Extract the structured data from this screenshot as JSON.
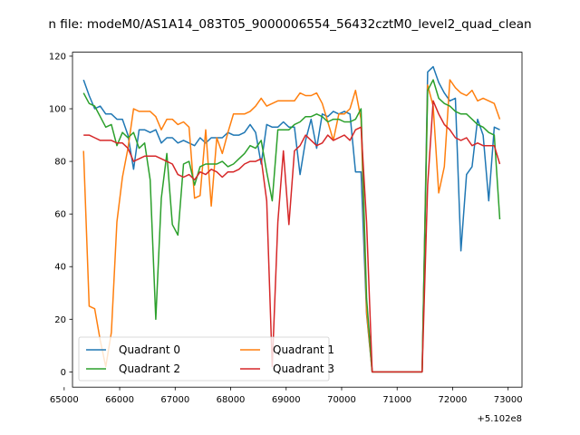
{
  "chart_data": {
    "type": "line",
    "title": "n file: modeM0/AS1A14_083T05_9000006554_56432cztM0_level2_quad_clean",
    "xlabel": "",
    "ylabel": "",
    "x_offset_label": "+5.102e8",
    "xlim": [
      65150,
      73250
    ],
    "ylim": [
      -5.8,
      121.5
    ],
    "x_ticks": [
      65000,
      66000,
      67000,
      68000,
      69000,
      70000,
      71000,
      72000,
      73000
    ],
    "y_ticks": [
      0,
      20,
      40,
      60,
      80,
      100,
      120
    ],
    "grid": false,
    "legend": {
      "placement": "lower-left",
      "columns": 2
    },
    "series": [
      {
        "name": "Quadrant 0",
        "color": "#1f77b4",
        "x": [
          65350,
          65450,
          65550,
          65650,
          65750,
          65850,
          65950,
          66050,
          66150,
          66250,
          66350,
          66450,
          66550,
          66650,
          66750,
          66850,
          66950,
          67050,
          67150,
          67250,
          67350,
          67450,
          67550,
          67650,
          67750,
          67850,
          67950,
          68050,
          68150,
          68250,
          68350,
          68450,
          68550,
          68650,
          68750,
          68850,
          68950,
          69050,
          69150,
          69250,
          69350,
          69450,
          69550,
          69650,
          69750,
          69850,
          69950,
          70050,
          70150,
          70250,
          70350,
          70450,
          70550,
          70650,
          71450,
          71550,
          71650,
          71750,
          71850,
          71950,
          72050,
          72150,
          72250,
          72350,
          72450,
          72550,
          72650,
          72750,
          72850
        ],
        "y": [
          111,
          105,
          100,
          101,
          98,
          98,
          96,
          96,
          90,
          77,
          92,
          92,
          91,
          92,
          87,
          89,
          89,
          87,
          88,
          87,
          86,
          89,
          87,
          89,
          89,
          89,
          91,
          90,
          90,
          91,
          94,
          91,
          79,
          94,
          93,
          93,
          95,
          93,
          93,
          75,
          88,
          96,
          85,
          98,
          97,
          99,
          98,
          99,
          98,
          76,
          76,
          22,
          0,
          0,
          0,
          114,
          116,
          110,
          106,
          103,
          104,
          46,
          75,
          78,
          96,
          90,
          65,
          93,
          92
        ]
      },
      {
        "name": "Quadrant 1",
        "color": "#ff7f0e",
        "x": [
          65350,
          65450,
          65550,
          65650,
          65750,
          65850,
          65950,
          66050,
          66150,
          66250,
          66350,
          66450,
          66550,
          66650,
          66750,
          66850,
          66950,
          67050,
          67150,
          67250,
          67350,
          67450,
          67550,
          67650,
          67750,
          67850,
          67950,
          68050,
          68150,
          68250,
          68350,
          68450,
          68550,
          68650,
          68750,
          68850,
          68950,
          69050,
          69150,
          69250,
          69350,
          69450,
          69550,
          69650,
          69750,
          69850,
          69950,
          70050,
          70150,
          70250,
          70350,
          70450,
          70550,
          70650,
          71450,
          71550,
          71650,
          71750,
          71850,
          71950,
          72050,
          72150,
          72250,
          72350,
          72450,
          72550,
          72650,
          72750,
          72850
        ],
        "y": [
          84,
          25,
          24,
          12,
          2,
          15,
          57,
          74,
          85,
          100,
          99,
          99,
          99,
          97,
          92,
          96,
          96,
          94,
          95,
          93,
          66,
          67,
          92,
          63,
          89,
          83,
          91,
          98,
          98,
          98,
          99,
          101,
          104,
          101,
          102,
          103,
          103,
          103,
          103,
          106,
          105,
          105,
          106,
          102,
          95,
          88,
          98,
          98,
          100,
          107,
          96,
          23,
          0,
          0,
          0,
          109,
          101,
          68,
          78,
          111,
          108,
          106,
          105,
          107,
          103,
          104,
          103,
          102,
          96
        ]
      },
      {
        "name": "Quadrant 2",
        "color": "#2ca02c",
        "x": [
          65350,
          65450,
          65550,
          65650,
          65750,
          65850,
          65950,
          66050,
          66150,
          66250,
          66350,
          66450,
          66550,
          66650,
          66750,
          66850,
          66950,
          67050,
          67150,
          67250,
          67350,
          67450,
          67550,
          67650,
          67750,
          67850,
          67950,
          68050,
          68150,
          68250,
          68350,
          68450,
          68550,
          68650,
          68750,
          68850,
          68950,
          69050,
          69150,
          69250,
          69350,
          69450,
          69550,
          69650,
          69750,
          69850,
          69950,
          70050,
          70150,
          70250,
          70350,
          70450,
          70550,
          70650,
          71450,
          71550,
          71650,
          71750,
          71850,
          71950,
          72050,
          72150,
          72250,
          72350,
          72450,
          72550,
          72650,
          72750,
          72850
        ],
        "y": [
          106,
          102,
          101,
          97,
          93,
          94,
          86,
          91,
          89,
          91,
          85,
          87,
          73,
          20,
          66,
          83,
          56,
          52,
          79,
          80,
          71,
          78,
          79,
          79,
          79,
          80,
          78,
          79,
          81,
          83,
          86,
          85,
          88,
          76,
          65,
          92,
          92,
          92,
          94,
          95,
          97,
          97,
          98,
          97,
          95,
          96,
          96,
          95,
          95,
          96,
          100,
          28,
          0,
          0,
          0,
          107,
          111,
          104,
          102,
          101,
          99,
          98,
          98,
          96,
          94,
          93,
          91,
          90,
          58
        ]
      },
      {
        "name": "Quadrant 3",
        "color": "#d62728",
        "x": [
          65350,
          65450,
          65550,
          65650,
          65750,
          65850,
          65950,
          66050,
          66150,
          66250,
          66350,
          66450,
          66550,
          66650,
          66750,
          66850,
          66950,
          67050,
          67150,
          67250,
          67350,
          67450,
          67550,
          67650,
          67750,
          67850,
          67950,
          68050,
          68150,
          68250,
          68350,
          68450,
          68550,
          68650,
          68750,
          68850,
          68950,
          69050,
          69150,
          69250,
          69350,
          69450,
          69550,
          69650,
          69750,
          69850,
          69950,
          70050,
          70150,
          70250,
          70350,
          70450,
          70550,
          70650,
          71450,
          71550,
          71650,
          71750,
          71850,
          71950,
          72050,
          72150,
          72250,
          72350,
          72450,
          72550,
          72650,
          72750,
          72850
        ],
        "y": [
          90,
          90,
          89,
          88,
          88,
          88,
          87,
          87,
          85,
          80,
          81,
          82,
          82,
          82,
          81,
          80,
          79,
          75,
          74,
          75,
          73,
          76,
          75,
          77,
          76,
          74,
          76,
          76,
          77,
          79,
          80,
          80,
          81,
          65,
          2,
          57,
          84,
          56,
          84,
          86,
          90,
          88,
          86,
          87,
          90,
          88,
          89,
          90,
          88,
          92,
          93,
          57,
          0,
          0,
          0,
          71,
          103,
          98,
          94,
          92,
          89,
          88,
          89,
          86,
          87,
          86,
          86,
          86,
          79
        ]
      }
    ]
  }
}
